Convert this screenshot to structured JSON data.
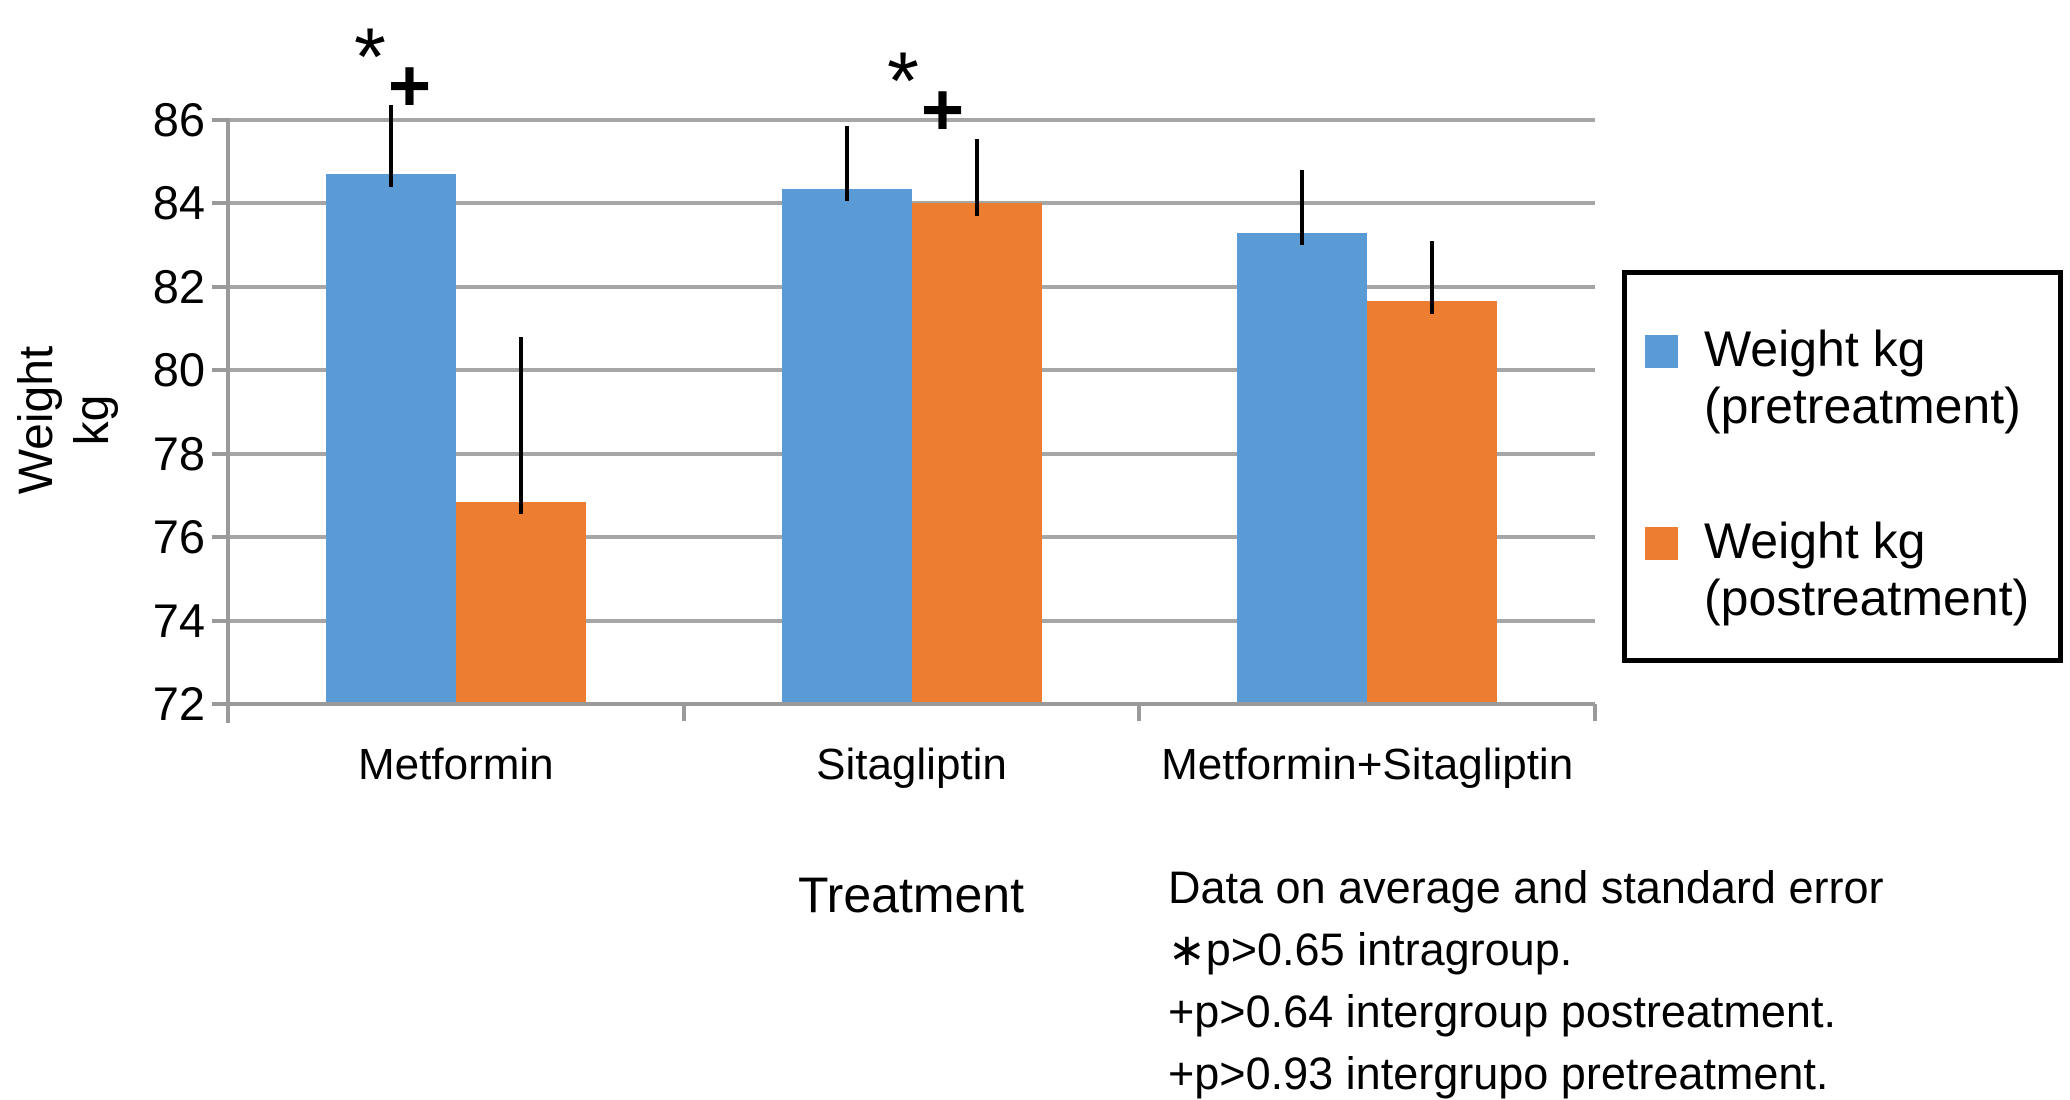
{
  "chart_data": {
    "type": "bar",
    "title": "",
    "categories": [
      "Metformin",
      "Sitagliptin",
      "Metformin+Sitagliptin"
    ],
    "series": [
      {
        "name": "Weight kg (pretreatment)",
        "color": "#5B9BD5",
        "values": [
          84.7,
          84.35,
          83.3
        ],
        "errors_up": [
          1.65,
          1.5,
          1.5
        ]
      },
      {
        "name": "Weight kg (postreatment)",
        "color": "#ED7D31",
        "values": [
          76.85,
          84.0,
          81.65
        ],
        "errors_up": [
          3.95,
          1.55,
          1.45
        ]
      }
    ],
    "ylabel_lines": [
      "Weight",
      "kg"
    ],
    "xlabel": "Treatment",
    "ylim": [
      72,
      86
    ],
    "ytick_step": 2,
    "grid": true,
    "legend_position": "right",
    "annotations": [
      {
        "category_index": 0,
        "star": "*",
        "plus": "+"
      },
      {
        "category_index": 1,
        "star": "*",
        "plus": "+"
      }
    ],
    "footnote_lines": [
      "Data on average and standard error",
      "∗p>0.65 intragroup.",
      "+p>0.64 intergroup postreatment.",
      "+p>0.93 intergrupo pretreatment."
    ]
  },
  "colors": {
    "pretreatment": "#5B9BD5",
    "postreatment": "#ED7D31",
    "grid": "#A6A6A6",
    "axis": "#9A9A9A",
    "text": "#000000",
    "background": "#FFFFFF"
  }
}
